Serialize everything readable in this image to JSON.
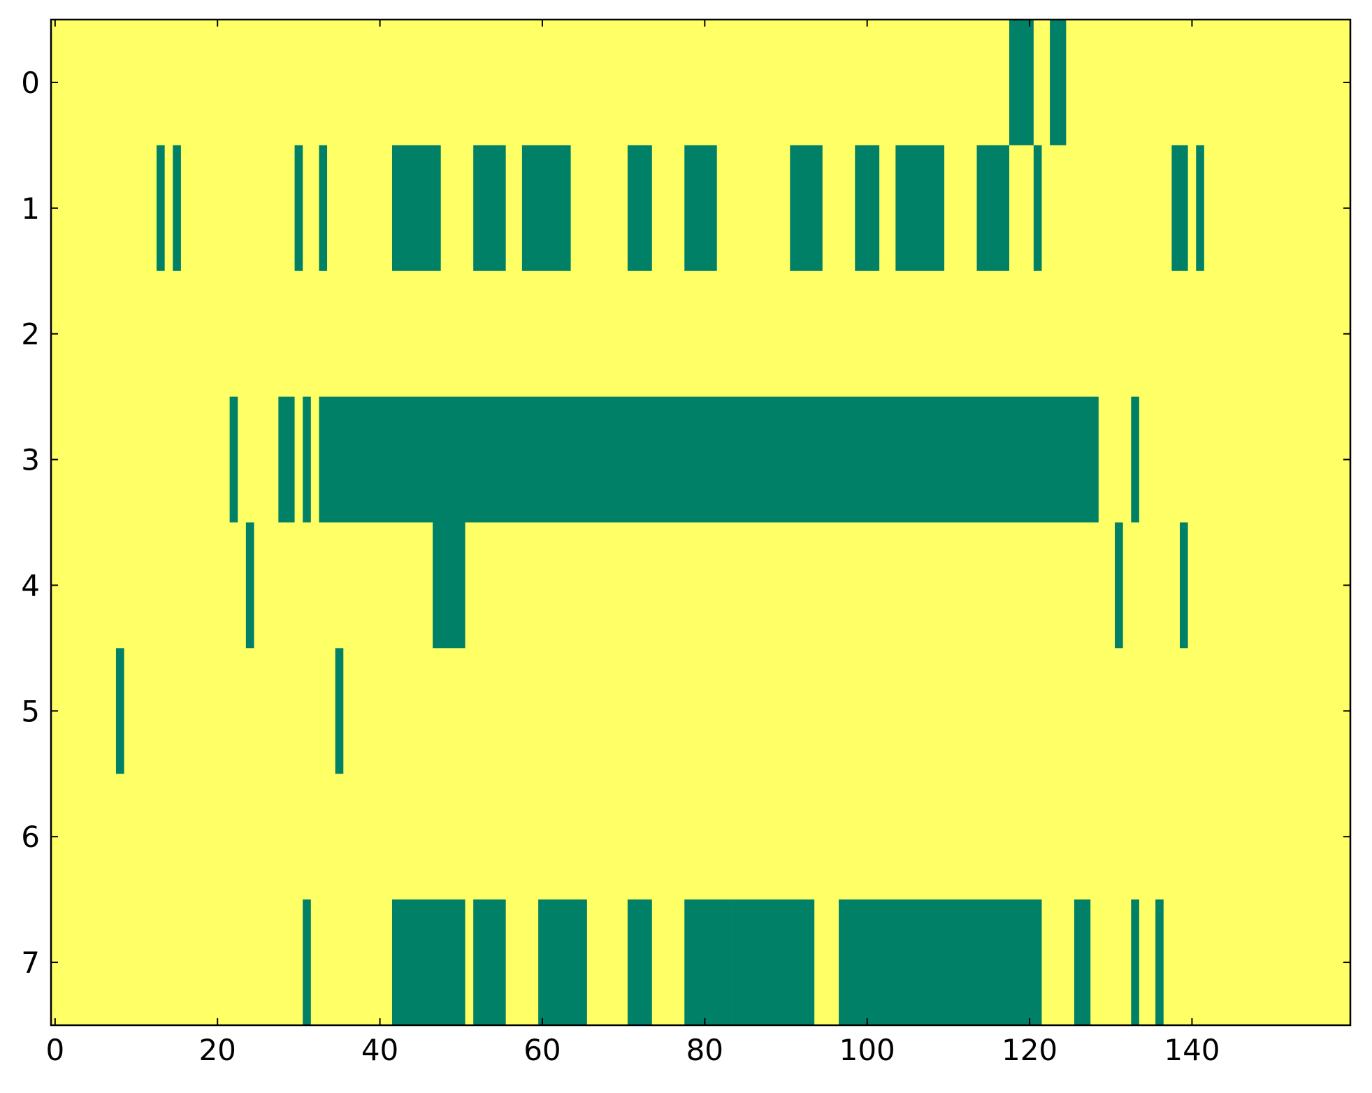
{
  "chart_data": {
    "type": "heatmap",
    "background_color": "#ffff66",
    "color": "#008066",
    "xlim": [
      -0.5,
      159.5
    ],
    "ylim": [
      7.5,
      -0.5
    ],
    "xticks": [
      0,
      20,
      40,
      60,
      80,
      100,
      120,
      140
    ],
    "yticks": [
      0,
      1,
      2,
      3,
      4,
      5,
      6,
      7
    ],
    "segments": [
      [
        [
          118,
          120
        ],
        [
          123,
          124
        ]
      ],
      [
        [
          13,
          13
        ],
        [
          15,
          15
        ],
        [
          30,
          30
        ],
        [
          33,
          33
        ],
        [
          42,
          47
        ],
        [
          52,
          55
        ],
        [
          58,
          63
        ],
        [
          71,
          73
        ],
        [
          78,
          81
        ],
        [
          91,
          94
        ],
        [
          99,
          101
        ],
        [
          104,
          109
        ],
        [
          114,
          117
        ],
        [
          121,
          121
        ],
        [
          138,
          139
        ],
        [
          141,
          141
        ]
      ],
      [],
      [
        [
          22,
          22
        ],
        [
          28,
          29
        ],
        [
          31,
          31
        ],
        [
          33,
          128
        ],
        [
          133,
          133
        ]
      ],
      [
        [
          24,
          24
        ],
        [
          47,
          50
        ],
        [
          131,
          131
        ],
        [
          139,
          139
        ]
      ],
      [
        [
          8,
          8
        ],
        [
          35,
          35
        ]
      ],
      [],
      [
        [
          31,
          31
        ],
        [
          42,
          50
        ],
        [
          52,
          55
        ],
        [
          60,
          65
        ],
        [
          71,
          73
        ],
        [
          78,
          83
        ],
        [
          84,
          93
        ],
        [
          97,
          121
        ],
        [
          126,
          127
        ],
        [
          133,
          133
        ],
        [
          136,
          136
        ]
      ]
    ]
  }
}
